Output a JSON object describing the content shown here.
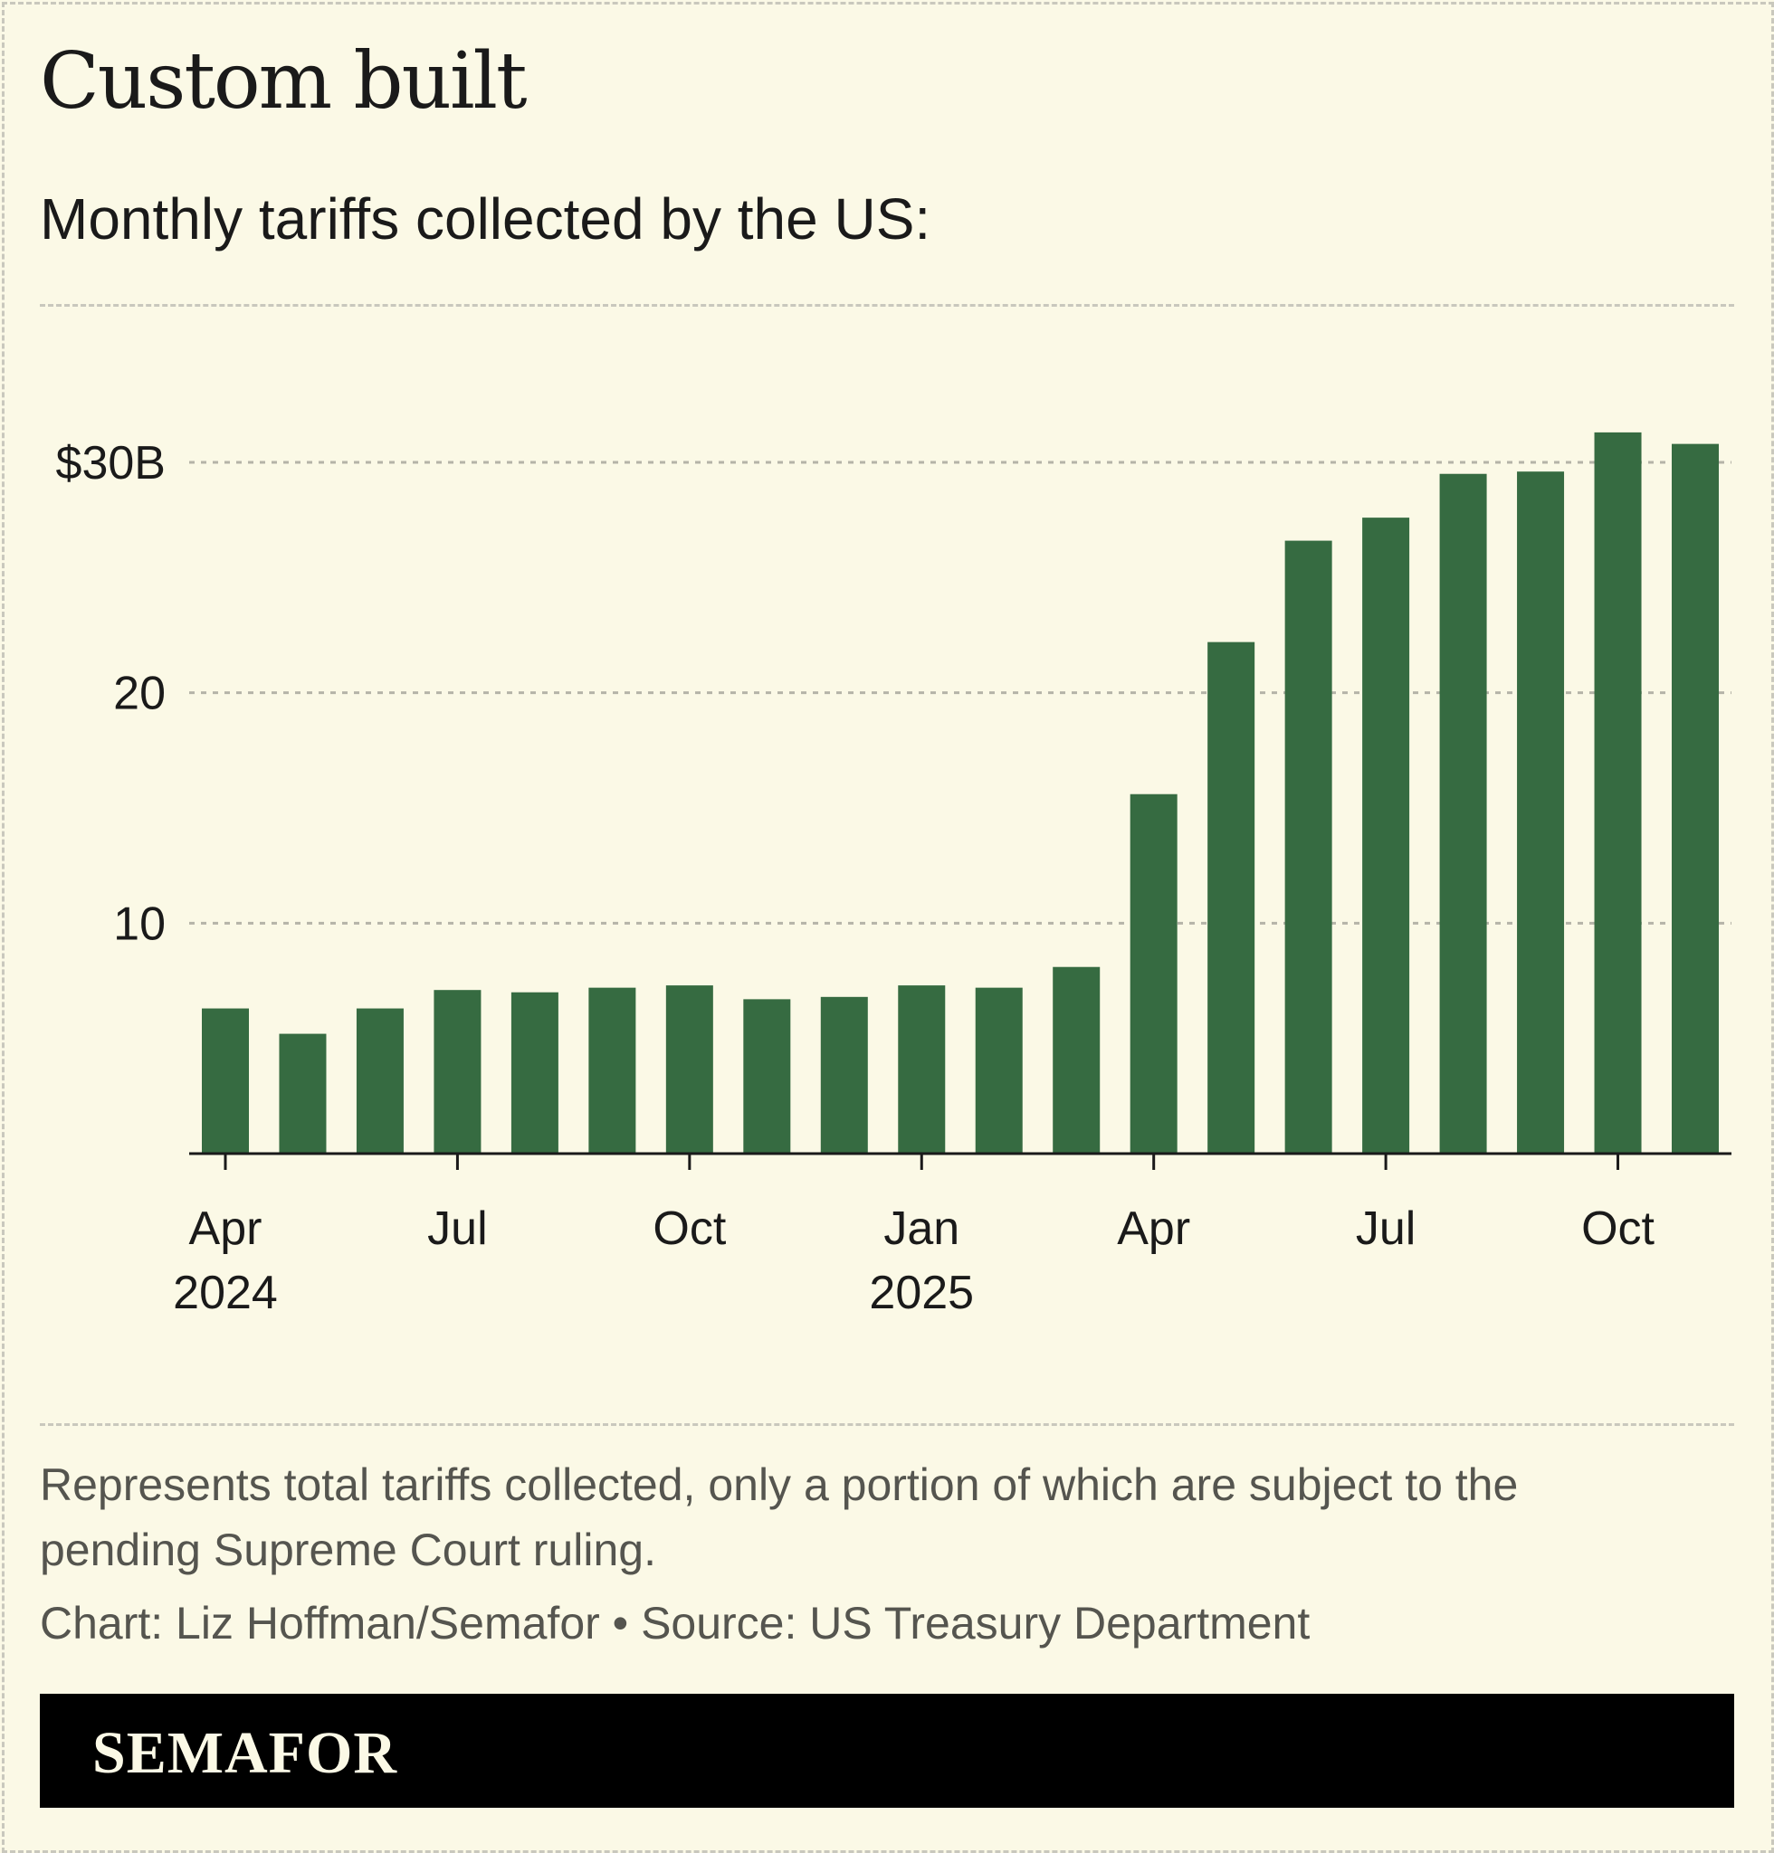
{
  "header": {
    "title": "Custom built",
    "subtitle": "Monthly tariffs collected by the US:"
  },
  "chart_data": {
    "type": "bar",
    "categories": [
      "Apr 2024",
      "May 2024",
      "Jun 2024",
      "Jul 2024",
      "Aug 2024",
      "Sep 2024",
      "Oct 2024",
      "Nov 2024",
      "Dec 2024",
      "Jan 2025",
      "Feb 2025",
      "Mar 2025",
      "Apr 2025",
      "May 2025",
      "Jun 2025",
      "Jul 2025",
      "Aug 2025",
      "Sep 2025",
      "Oct 2025",
      "Nov 2025"
    ],
    "values": [
      6.3,
      5.2,
      6.3,
      7.1,
      7.0,
      7.2,
      7.3,
      6.7,
      6.8,
      7.3,
      7.2,
      8.1,
      15.6,
      22.2,
      26.6,
      27.6,
      29.5,
      29.6,
      31.3,
      30.8
    ],
    "unit": "billion USD",
    "ylim": [
      0,
      35
    ],
    "yticks": [
      {
        "value": 10,
        "label": "10"
      },
      {
        "value": 20,
        "label": "20"
      },
      {
        "value": 30,
        "label": "$30B"
      }
    ],
    "xticks": [
      {
        "index": 0,
        "label": "Apr",
        "year": "2024"
      },
      {
        "index": 3,
        "label": "Jul",
        "year": ""
      },
      {
        "index": 6,
        "label": "Oct",
        "year": ""
      },
      {
        "index": 9,
        "label": "Jan",
        "year": "2025"
      },
      {
        "index": 12,
        "label": "Apr",
        "year": ""
      },
      {
        "index": 15,
        "label": "Jul",
        "year": ""
      },
      {
        "index": 18,
        "label": "Oct",
        "year": ""
      }
    ],
    "grid": true,
    "bar_color": "#366b41"
  },
  "footer": {
    "note": "Represents total tariffs collected, only a portion of which are subject to the pending Supreme Court ruling.",
    "credit": "Chart: Liz Hoffman/Semafor • Source: US Treasury Department",
    "brand": "SEMAFOR"
  }
}
